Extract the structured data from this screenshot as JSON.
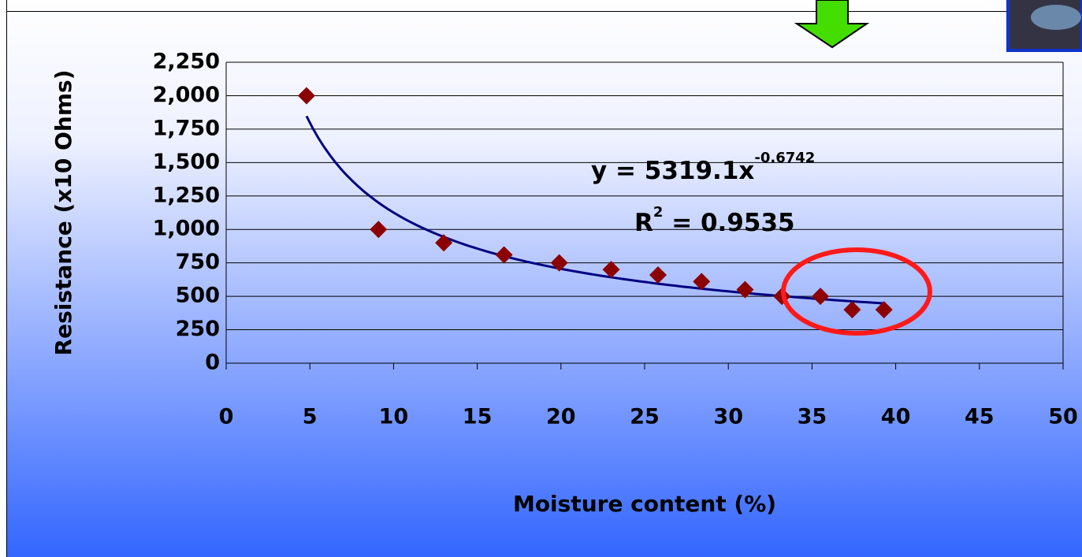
{
  "chart_data": {
    "type": "scatter",
    "x_label": "Moisture content (%)",
    "y_label": "Resistance (x10 Ohms)",
    "series": [
      {
        "color": "#8b0000",
        "x": [
          4.8,
          9.1,
          13.0,
          16.6,
          19.9,
          23.0,
          25.8,
          28.4,
          31.0,
          33.2,
          35.5,
          37.4,
          39.3
        ],
        "values": [
          2000,
          1000,
          900,
          810,
          750,
          700,
          660,
          610,
          550,
          500,
          500,
          400,
          400
        ]
      }
    ],
    "trendline": {
      "type": "power",
      "coefficient": 5319.1,
      "exponent": -0.6742,
      "color": "#000080"
    },
    "equation": "y = 5319.1x",
    "equation_superscript": "-0.6742",
    "r_squared": "R",
    "r_squared_superscript": "2",
    "r_squared_value": " = 0.9535",
    "xlim": [
      0,
      50
    ],
    "xticks": [
      0,
      5,
      10,
      15,
      20,
      25,
      30,
      35,
      40,
      45,
      50
    ],
    "ylim": [
      0,
      2250
    ],
    "yticks": [
      0,
      250,
      500,
      750,
      {
        "value": 1000,
        "label": "1,000"
      },
      {
        "value": 1250,
        "label": "1,250"
      },
      {
        "value": 1500,
        "label": "1,500"
      },
      {
        "value": 1750,
        "label": "1,750"
      },
      {
        "value": 2000,
        "label": "2,000"
      },
      {
        "value": 2250,
        "label": "2,250"
      }
    ],
    "grid": true
  }
}
